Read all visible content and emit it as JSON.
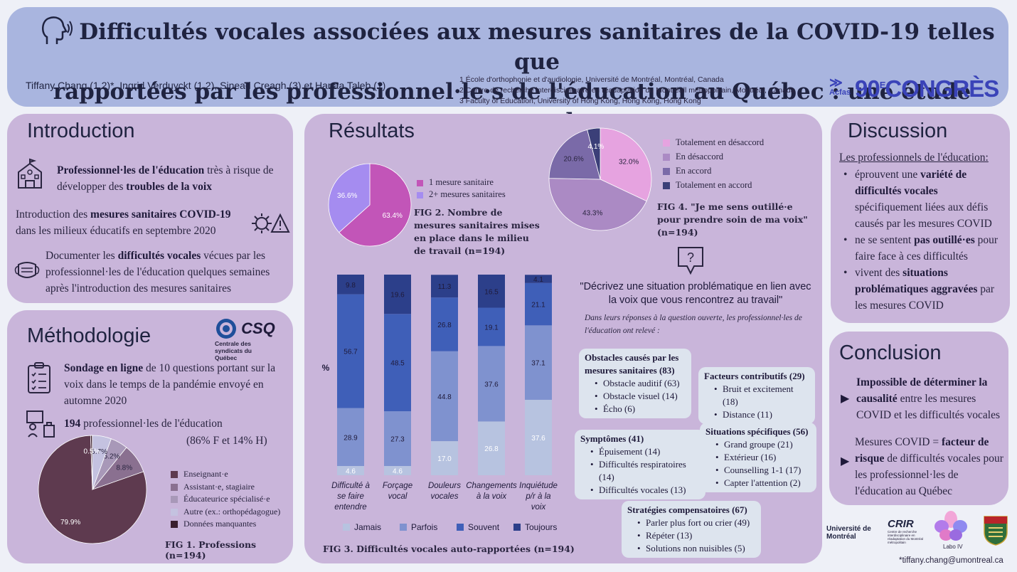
{
  "header": {
    "title_line1": "Difficultés vocales associées aux mesures sanitaires de la COVID-19 telles que",
    "title_line2": "rapportées par les professionnel·le·s de l'éducation au Québec : une étude transversale",
    "authors": "Tiffany Chang (1,2)*, Ingrid Verduyckt (1,2), Sinead Creagh (3) et Hanaa Taleb (1)",
    "affiliations": [
      "1 École d'orthophonie et d'audiologie, Université de Montréal, Montréal, Canada",
      "2 Centre de recherche interdisciplinaire en réadaptation du Montréall métropolitain, Montréal, Canada",
      "3 Faculty of Education, University of Hong Kong, Hong Kong, Hong Kong"
    ],
    "acfas": "Acfas",
    "congres_num": "90",
    "congres_sup": "E",
    "congres_word": "CONGRÈS"
  },
  "introduction": {
    "title": "Introduction",
    "p1_bold1": "Professionnel·les de l'éducation",
    "p1_text1": " très à risque de développer des ",
    "p1_bold2": "troubles de la voix",
    "p2_text1": "Introduction des ",
    "p2_bold": "mesures sanitaires COVID-19",
    "p2_text2": " dans les milieux éducatifs en septembre 2020",
    "p3_text1": "Documenter les ",
    "p3_bold": "difficultés vocales",
    "p3_text2": " vécues par les professionnel·les de l'éducation quelques semaines après l'introduction des mesures sanitaires"
  },
  "methodologie": {
    "title": "Méthodologie",
    "csq": "CSQ",
    "csq_sub": "Centrale des syndicats du Québec",
    "p1_bold": "Sondage en ligne",
    "p1_text": " de 10 questions portant sur la voix dans le temps de la pandémie envoyé en automne 2020",
    "p2_bold": "194",
    "p2_text": " professionnel·les de l'éducation",
    "p2_sub": "(86% F et 14% H)",
    "fig_caption": "FIG 1. Professions (n=194)"
  },
  "resultats": {
    "title": "Résultats",
    "fig2_caption": "FIG 2. Nombre de mesures sanitaires mises en place dans le milieu de travail (n=194)",
    "fig3_caption": "FIG 3. Difficultés vocales auto-rapportées (n=194)",
    "fig4_caption": "FIG 4. \"Je me sens outillé·e pour prendre soin de ma voix\"(n=194)",
    "question": "\"Décrivez une situation problématique en lien avec la voix que vous rencontrez au travail\"",
    "question_sub": "Dans leurs réponses à la question ouverte, les professionnel·les de l'éducation ont relevé :",
    "themes": [
      {
        "title": "Obstacles causés par les mesures sanitaires (83)",
        "items": [
          "Obstacle auditif (63)",
          "Obstacle visuel (14)",
          "Écho (6)"
        ]
      },
      {
        "title": "Facteurs contributifs (29)",
        "items": [
          "Bruit et excitement (18)",
          "Distance (11)"
        ]
      },
      {
        "title": "Symptômes (41)",
        "items": [
          "Épuisement (14)",
          "Difficultés respiratoires (14)",
          "Difficultés vocales (13)"
        ]
      },
      {
        "title": "Situations spécifiques (56)",
        "items": [
          "Grand groupe (21)",
          "Extérieur (16)",
          "Counselling 1-1 (17)",
          "Capter l'attention (2)"
        ]
      },
      {
        "title": "Stratégies compensatoires (67)",
        "items": [
          "Parler plus fort ou crier (49)",
          "Répéter (13)",
          "Solutions non nuisibles (5)"
        ]
      }
    ]
  },
  "discussion": {
    "title": "Discussion",
    "lead": "Les professionnels de l'éducation:",
    "b1_text1": "éprouvent une ",
    "b1_bold": "variété de difficultés vocales",
    "b1_text2": " spécifiquement liées aux défis causés par les mesures COVID",
    "b2_text1": "ne se sentent ",
    "b2_bold": "pas outillé·es",
    "b2_text2": " pour faire face à ces difficultés",
    "b3_text1": "vivent des ",
    "b3_bold": "situations problématiques aggravées",
    "b3_text2": " par les mesures COVID"
  },
  "conclusion": {
    "title": "Conclusion",
    "p1_bold": "Impossible de déterminer la causalité",
    "p1_text": " entre les mesures COVID et les difficultés vocales",
    "p2_text1": "Mesures COVID = ",
    "p2_bold": "facteur de risque",
    "p2_text2": " de difficultés vocales pour les professionnel·les de l'éducation au Québec"
  },
  "logos": {
    "udem": "Université de Montréal",
    "crir": "CRIR",
    "crir_sub": "Centre de recherche interdisciplinaire en réadaptation du Montréal métropolitain",
    "labo": "Labo IV",
    "email": "*tiffany.chang@umontreal.ca"
  },
  "colors": {
    "panel": "#c9b5da",
    "header": "#a9b5df",
    "jamais": "#b7c3e0",
    "parfois": "#7f92cf",
    "souvent": "#3f5fb8",
    "toujours": "#2c3f8a"
  },
  "chart_data": [
    {
      "id": "fig1",
      "type": "pie",
      "title": "FIG 1. Professions (n=194)",
      "series": [
        {
          "name": "Enseignant·e",
          "value": 79.9,
          "color": "#5e3a4f"
        },
        {
          "name": "Assistant·e, stagiaire",
          "value": 8.8,
          "color": "#8a7090"
        },
        {
          "name": "Éducateurice spécialisé·e",
          "value": 5.2,
          "color": "#a898b8"
        },
        {
          "name": "Autre (ex.: orthopédagogue)",
          "value": 5.7,
          "color": "#c4c2e0"
        },
        {
          "name": "Données manquantes",
          "value": 0.5,
          "color": "#3a1f2e"
        }
      ]
    },
    {
      "id": "fig2",
      "type": "pie",
      "title": "FIG 2. Nombre de mesures sanitaires mises en place dans le milieu de travail (n=194)",
      "series": [
        {
          "name": "1 mesure sanitaire",
          "value": 63.4,
          "color": "#c255b8"
        },
        {
          "name": "2+ mesures sanitaires",
          "value": 36.6,
          "color": "#a58cf0"
        }
      ]
    },
    {
      "id": "fig3",
      "type": "bar",
      "stacked": true,
      "title": "FIG 3. Difficultés vocales auto-rapportées (n=194)",
      "ylabel": "%",
      "categories": [
        "Difficulté à se faire entendre",
        "Forçage vocal",
        "Douleurs vocales",
        "Changements à la voix",
        "Inquiétude p/r à la voix"
      ],
      "series": [
        {
          "name": "Jamais",
          "values": [
            4.6,
            4.6,
            17.0,
            26.8,
            37.6
          ]
        },
        {
          "name": "Parfois",
          "values": [
            28.9,
            27.3,
            44.8,
            37.6,
            37.1
          ]
        },
        {
          "name": "Souvent",
          "values": [
            56.7,
            48.5,
            26.8,
            19.1,
            21.1
          ]
        },
        {
          "name": "Toujours",
          "values": [
            9.8,
            19.6,
            11.3,
            16.5,
            4.1
          ]
        }
      ]
    },
    {
      "id": "fig4",
      "type": "pie",
      "title": "FIG 4. \"Je me sens outillé·e pour prendre soin de ma voix\"(n=194)",
      "series": [
        {
          "name": "Totalement en désaccord",
          "value": 32.0,
          "color": "#e6a3e0"
        },
        {
          "name": "En désaccord",
          "value": 43.3,
          "color": "#ab8ac4"
        },
        {
          "name": "En accord",
          "value": 20.6,
          "color": "#7a6aa8"
        },
        {
          "name": "Totalement en accord",
          "value": 4.1,
          "color": "#3b3f78"
        }
      ]
    }
  ]
}
